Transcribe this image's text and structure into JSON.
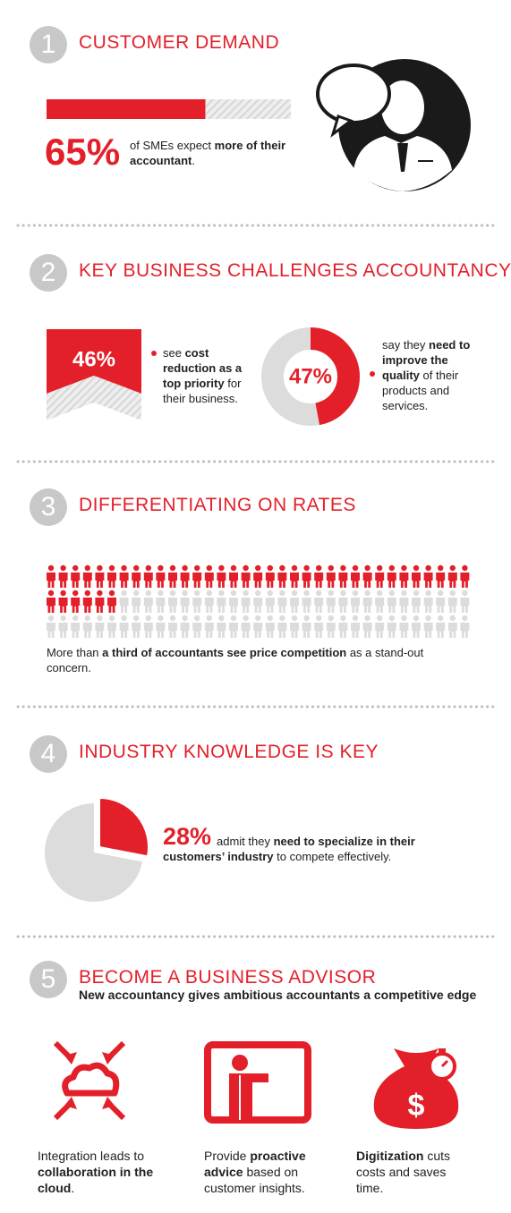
{
  "sections": [
    {
      "number": "1",
      "title": "CUSTOMER DEMAND",
      "stat": {
        "value": 65,
        "label": "65%"
      },
      "text": [
        {
          "text": "of SMEs expect "
        },
        {
          "text": "more of their accountant",
          "bold": true
        },
        {
          "text": "."
        }
      ]
    },
    {
      "number": "2",
      "title": "KEY BUSINESS CHALLENGES ACCOUNTANCY",
      "stats": [
        {
          "value": 46,
          "label": "46%",
          "text": [
            {
              "text": "see "
            },
            {
              "text": "cost reduction as a top priority",
              "bold": true
            },
            {
              "text": " for their business."
            }
          ]
        },
        {
          "value": 47,
          "label": "47%",
          "text": [
            {
              "text": "say they "
            },
            {
              "text": "need to improve the quality",
              "bold": true
            },
            {
              "text": " of their products and services."
            }
          ]
        }
      ]
    },
    {
      "number": "3",
      "title": "DIFFERENTIATING ON RATES",
      "people": {
        "highlighted": 41,
        "total": 105
      },
      "text": [
        {
          "text": "More than "
        },
        {
          "text": "a third of accountants see price competition",
          "bold": true
        },
        {
          "text": " as a stand-out concern."
        }
      ]
    },
    {
      "number": "4",
      "title": "INDUSTRY KNOWLEDGE IS KEY",
      "stat": {
        "value": 28,
        "label": "28%"
      },
      "text": [
        {
          "text": "admit they "
        },
        {
          "text": "need to specialize in their customers’ industry",
          "bold": true
        },
        {
          "text": " to compete effectively."
        }
      ]
    },
    {
      "number": "5",
      "title": "BECOME A BUSINESS ADVISOR",
      "subtitle": "New accountancy gives ambitious accountants a competitive edge",
      "items": [
        {
          "text": [
            {
              "text": "Integration leads to "
            },
            {
              "text": "collaboration in the cloud",
              "bold": true
            },
            {
              "text": "."
            }
          ]
        },
        {
          "text": [
            {
              "text": "Provide "
            },
            {
              "text": "proactive advice",
              "bold": true
            },
            {
              "text": " based on customer insights."
            }
          ]
        },
        {
          "text": [
            {
              "text": "Digitization",
              "bold": true
            },
            {
              "text": " cuts costs and saves time."
            }
          ]
        }
      ]
    }
  ]
}
